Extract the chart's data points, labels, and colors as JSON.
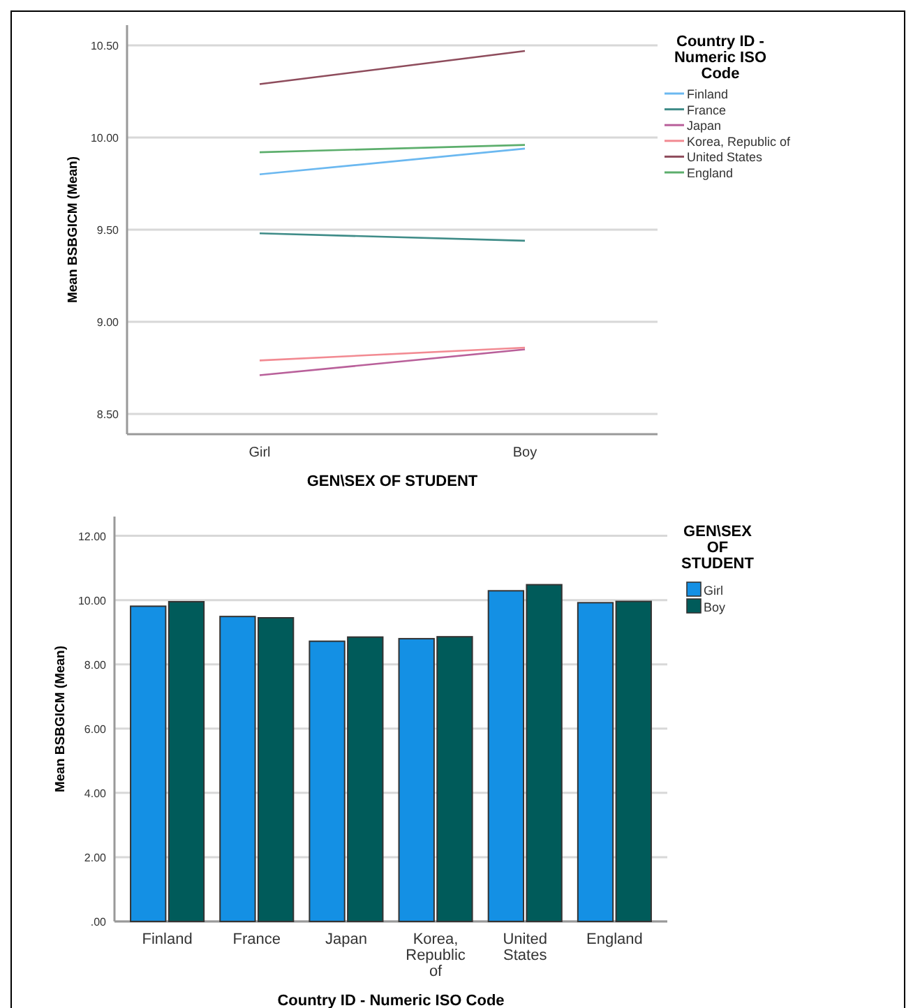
{
  "chart_data": [
    {
      "type": "line",
      "xlabel": "GEN\\SEX OF STUDENT",
      "ylabel": "Mean BSBGICM (Mean)",
      "legend_title": "Country ID - Numeric ISO Code",
      "categories": [
        "Girl",
        "Boy"
      ],
      "series": [
        {
          "name": "Finland",
          "color": "#6bb8f0",
          "values": [
            9.8,
            9.94
          ]
        },
        {
          "name": "France",
          "color": "#3f8c88",
          "values": [
            9.48,
            9.44
          ]
        },
        {
          "name": "Japan",
          "color": "#b9609a",
          "values": [
            8.71,
            8.85
          ]
        },
        {
          "name": "Korea, Republic of",
          "color": "#f28a92",
          "values": [
            8.79,
            8.86
          ]
        },
        {
          "name": "United States",
          "color": "#8e4c5c",
          "values": [
            10.29,
            10.47
          ]
        },
        {
          "name": "England",
          "color": "#5cae6c",
          "values": [
            9.92,
            9.96
          ]
        }
      ],
      "ylim": [
        8.39,
        10.61
      ],
      "yticks": [
        {
          "value": 8.5,
          "label": "8.50"
        },
        {
          "value": 9,
          "label": "9.00"
        },
        {
          "value": 9.5,
          "label": "9.50"
        },
        {
          "value": 10,
          "label": "10.00"
        },
        {
          "value": 10.5,
          "label": "10.50"
        }
      ],
      "grid": "y",
      "legend": "right",
      "marker": "none",
      "line_style": "solid"
    },
    {
      "type": "bar",
      "xlabel": "Country ID - Numeric ISO Code",
      "ylabel": "Mean BSBGICM (Mean)",
      "legend_title": "GEN\\SEX OF STUDENT",
      "categories": [
        "Finland",
        "France",
        "Japan",
        "Korea, Republic of",
        "United States",
        "England"
      ],
      "series": [
        {
          "name": "Girl",
          "color": "#1490e4",
          "values": [
            9.81,
            9.49,
            8.72,
            8.8,
            10.29,
            9.92
          ]
        },
        {
          "name": "Boy",
          "color": "#005b5a",
          "values": [
            9.95,
            9.45,
            8.85,
            8.86,
            10.48,
            9.96
          ]
        }
      ],
      "ylim": [
        0,
        12.6
      ],
      "yticks": [
        {
          "value": 0,
          "label": ".00"
        },
        {
          "value": 2,
          "label": "2.00"
        },
        {
          "value": 4,
          "label": "4.00"
        },
        {
          "value": 6,
          "label": "6.00"
        },
        {
          "value": 8,
          "label": "8.00"
        },
        {
          "value": 10,
          "label": "10.00"
        },
        {
          "value": 12,
          "label": "12.00"
        }
      ],
      "grid": "y",
      "legend": "right"
    }
  ]
}
